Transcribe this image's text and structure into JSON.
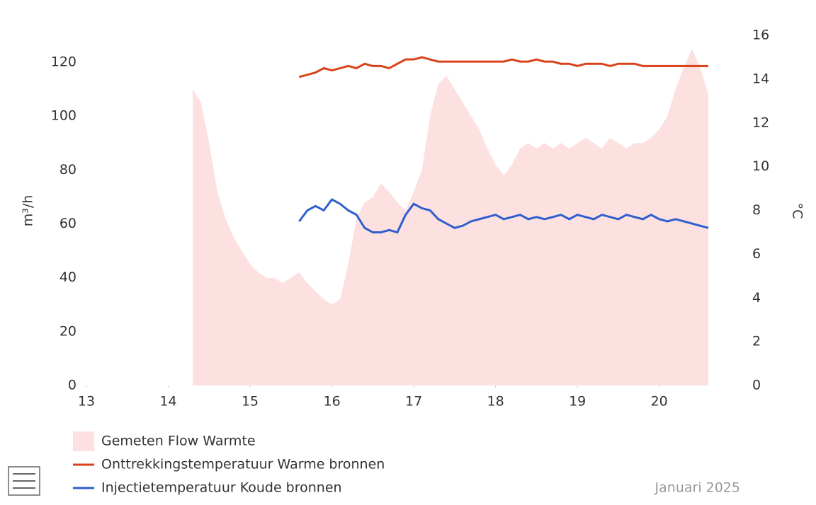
{
  "chart_data": {
    "type": "line",
    "x_caption": "Januari 2025",
    "ylabel": "m³/h",
    "y2label": "°C",
    "xlim": [
      13,
      20.6
    ],
    "xticks": [
      13,
      14,
      15,
      16,
      17,
      18,
      19,
      20
    ],
    "ylim": [
      0,
      130
    ],
    "yticks": [
      0,
      20,
      40,
      60,
      80,
      100,
      120
    ],
    "y2lim": [
      0,
      16
    ],
    "y2ticks": [
      0,
      2,
      4,
      6,
      8,
      10,
      12,
      14,
      16
    ],
    "series": [
      {
        "name": "Gemeten Flow Warmte",
        "kind": "area",
        "color": "#fde0e0",
        "x": [
          14.3,
          14.4,
          14.5,
          14.6,
          14.7,
          14.8,
          14.9,
          15.0,
          15.1,
          15.2,
          15.3,
          15.4,
          15.5,
          15.6,
          15.7,
          15.8,
          15.9,
          16.0,
          16.1,
          16.2,
          16.3,
          16.4,
          16.5,
          16.6,
          16.7,
          16.8,
          16.9,
          17.0,
          17.1,
          17.2,
          17.3,
          17.4,
          17.5,
          17.6,
          17.7,
          17.8,
          17.9,
          18.0,
          18.1,
          18.2,
          18.3,
          18.4,
          18.5,
          18.6,
          18.7,
          18.8,
          18.9,
          19.0,
          19.1,
          19.2,
          19.3,
          19.4,
          19.5,
          19.6,
          19.7,
          19.8,
          19.9,
          20.0,
          20.1,
          20.2,
          20.3,
          20.4,
          20.5,
          20.6
        ],
        "values": [
          110,
          105,
          90,
          72,
          62,
          55,
          50,
          45,
          42,
          40,
          40,
          38,
          40,
          42,
          38,
          35,
          32,
          30,
          32,
          45,
          62,
          68,
          70,
          75,
          72,
          68,
          65,
          72,
          80,
          100,
          112,
          115,
          110,
          105,
          100,
          95,
          88,
          82,
          78,
          82,
          88,
          90,
          88,
          90,
          88,
          90,
          88,
          90,
          92,
          90,
          88,
          92,
          90,
          88,
          90,
          90,
          92,
          95,
          100,
          110,
          118,
          125,
          118,
          108
        ]
      },
      {
        "name": "Onttrekkingstemperatuur Warme bronnen",
        "axis": "y2",
        "color": "#d9421a",
        "x": [
          15.6,
          15.7,
          15.8,
          15.9,
          16.0,
          16.1,
          16.2,
          16.3,
          16.4,
          16.5,
          16.6,
          16.7,
          16.8,
          16.9,
          17.0,
          17.1,
          17.2,
          17.3,
          17.4,
          17.5,
          17.6,
          17.7,
          17.8,
          17.9,
          18.0,
          18.1,
          18.2,
          18.3,
          18.4,
          18.5,
          18.6,
          18.7,
          18.8,
          18.9,
          19.0,
          19.1,
          19.2,
          19.3,
          19.4,
          19.5,
          19.6,
          19.7,
          19.8,
          19.9,
          20.0,
          20.1,
          20.2,
          20.3,
          20.4,
          20.5,
          20.6
        ],
        "values": [
          14.1,
          14.2,
          14.3,
          14.5,
          14.4,
          14.5,
          14.6,
          14.5,
          14.7,
          14.6,
          14.6,
          14.5,
          14.7,
          14.9,
          14.9,
          15.0,
          14.9,
          14.8,
          14.8,
          14.8,
          14.8,
          14.8,
          14.8,
          14.8,
          14.8,
          14.8,
          14.9,
          14.8,
          14.8,
          14.9,
          14.8,
          14.8,
          14.7,
          14.7,
          14.6,
          14.7,
          14.7,
          14.7,
          14.6,
          14.7,
          14.7,
          14.7,
          14.6,
          14.6,
          14.6,
          14.6,
          14.6,
          14.6,
          14.6,
          14.6,
          14.6
        ]
      },
      {
        "name": "Injectietemperatuur Koude bronnen",
        "axis": "y2",
        "color": "#2e5fcf",
        "x": [
          15.6,
          15.7,
          15.8,
          15.9,
          16.0,
          16.1,
          16.2,
          16.3,
          16.4,
          16.5,
          16.6,
          16.7,
          16.8,
          16.9,
          17.0,
          17.1,
          17.2,
          17.3,
          17.4,
          17.5,
          17.6,
          17.7,
          17.8,
          17.9,
          18.0,
          18.1,
          18.2,
          18.3,
          18.4,
          18.5,
          18.6,
          18.7,
          18.8,
          18.9,
          19.0,
          19.1,
          19.2,
          19.3,
          19.4,
          19.5,
          19.6,
          19.7,
          19.8,
          19.9,
          20.0,
          20.1,
          20.2,
          20.3,
          20.4,
          20.5,
          20.6
        ],
        "values": [
          7.5,
          8.0,
          8.2,
          8.0,
          8.5,
          8.3,
          8.0,
          7.8,
          7.2,
          7.0,
          7.0,
          7.1,
          7.0,
          7.8,
          8.3,
          8.1,
          8.0,
          7.6,
          7.4,
          7.2,
          7.3,
          7.5,
          7.6,
          7.7,
          7.8,
          7.6,
          7.7,
          7.8,
          7.6,
          7.7,
          7.6,
          7.7,
          7.8,
          7.6,
          7.8,
          7.7,
          7.6,
          7.8,
          7.7,
          7.6,
          7.8,
          7.7,
          7.6,
          7.8,
          7.6,
          7.5,
          7.6,
          7.5,
          7.4,
          7.3,
          7.2
        ]
      }
    ]
  }
}
